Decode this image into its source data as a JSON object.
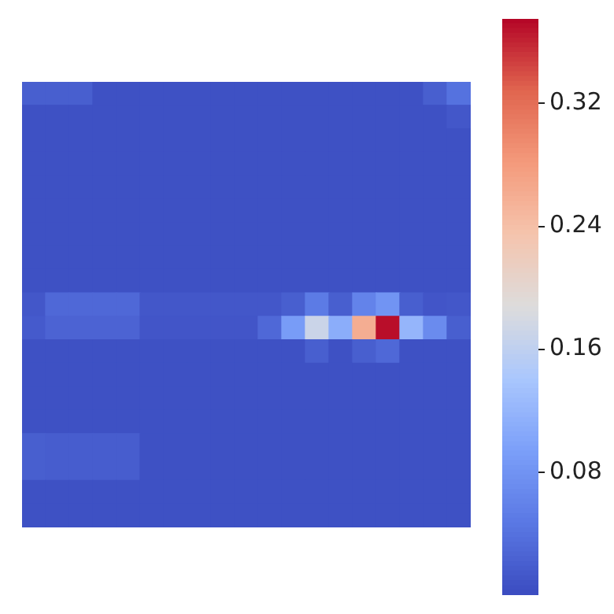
{
  "chart_data": {
    "type": "heatmap",
    "categories": [
      null,
      null,
      null,
      null,
      null,
      null,
      null,
      null,
      null,
      null,
      null,
      null,
      null,
      null,
      null,
      null,
      null,
      null,
      null
    ],
    "y_categories": [
      null,
      null,
      null,
      null,
      null,
      null,
      null,
      null,
      null,
      null,
      null,
      null,
      null,
      null,
      null,
      null,
      null,
      null,
      null
    ],
    "tick_labels": false,
    "clim": [
      0,
      0.375
    ],
    "cticks": [
      0.08,
      0.16,
      0.24,
      0.32
    ],
    "cells": [
      [
        0.02,
        0.02,
        0.02,
        0.005,
        0.005,
        0.005,
        0.005,
        0.005,
        0.005,
        0.005,
        0.005,
        0.005,
        0.005,
        0.005,
        0.005,
        0.005,
        0.005,
        0.02,
        0.04
      ],
      [
        0.005,
        0.005,
        0.005,
        0.005,
        0.005,
        0.005,
        0.005,
        0.005,
        0.005,
        0.005,
        0.005,
        0.005,
        0.005,
        0.005,
        0.005,
        0.005,
        0.005,
        0.005,
        0.012
      ],
      [
        0.005,
        0.005,
        0.005,
        0.005,
        0.005,
        0.005,
        0.005,
        0.005,
        0.005,
        0.005,
        0.005,
        0.005,
        0.005,
        0.005,
        0.005,
        0.005,
        0.005,
        0.005,
        0.005
      ],
      [
        0.005,
        0.005,
        0.005,
        0.005,
        0.005,
        0.005,
        0.005,
        0.005,
        0.005,
        0.005,
        0.005,
        0.005,
        0.005,
        0.005,
        0.005,
        0.005,
        0.005,
        0.005,
        0.005
      ],
      [
        0.005,
        0.005,
        0.005,
        0.005,
        0.005,
        0.005,
        0.005,
        0.005,
        0.005,
        0.005,
        0.005,
        0.005,
        0.005,
        0.005,
        0.005,
        0.005,
        0.005,
        0.005,
        0.005
      ],
      [
        0.005,
        0.005,
        0.005,
        0.005,
        0.005,
        0.005,
        0.005,
        0.005,
        0.005,
        0.005,
        0.005,
        0.005,
        0.005,
        0.005,
        0.005,
        0.005,
        0.005,
        0.005,
        0.005
      ],
      [
        0.005,
        0.005,
        0.005,
        0.005,
        0.005,
        0.005,
        0.005,
        0.005,
        0.005,
        0.005,
        0.005,
        0.005,
        0.005,
        0.005,
        0.005,
        0.005,
        0.005,
        0.005,
        0.005
      ],
      [
        0.005,
        0.005,
        0.005,
        0.005,
        0.005,
        0.005,
        0.005,
        0.005,
        0.005,
        0.005,
        0.005,
        0.005,
        0.005,
        0.005,
        0.005,
        0.005,
        0.005,
        0.005,
        0.005
      ],
      [
        0.005,
        0.005,
        0.005,
        0.005,
        0.005,
        0.005,
        0.005,
        0.005,
        0.005,
        0.005,
        0.005,
        0.005,
        0.005,
        0.005,
        0.005,
        0.005,
        0.005,
        0.005,
        0.005
      ],
      [
        0.012,
        0.03,
        0.03,
        0.03,
        0.03,
        0.012,
        0.012,
        0.012,
        0.012,
        0.012,
        0.012,
        0.02,
        0.05,
        0.02,
        0.06,
        0.08,
        0.02,
        0.01,
        0.012
      ],
      [
        0.015,
        0.025,
        0.025,
        0.025,
        0.025,
        0.01,
        0.01,
        0.01,
        0.01,
        0.01,
        0.03,
        0.09,
        0.17,
        0.11,
        0.26,
        0.37,
        0.12,
        0.07,
        0.02
      ],
      [
        0.005,
        0.005,
        0.005,
        0.005,
        0.005,
        0.005,
        0.005,
        0.005,
        0.005,
        0.005,
        0.005,
        0.005,
        0.02,
        0.005,
        0.02,
        0.03,
        0.005,
        0.005,
        0.005
      ],
      [
        0.005,
        0.005,
        0.005,
        0.005,
        0.005,
        0.005,
        0.005,
        0.005,
        0.005,
        0.005,
        0.005,
        0.005,
        0.005,
        0.005,
        0.005,
        0.005,
        0.005,
        0.005,
        0.005
      ],
      [
        0.005,
        0.005,
        0.005,
        0.005,
        0.005,
        0.005,
        0.005,
        0.005,
        0.005,
        0.005,
        0.005,
        0.005,
        0.005,
        0.005,
        0.005,
        0.005,
        0.005,
        0.005,
        0.005
      ],
      [
        0.005,
        0.005,
        0.005,
        0.005,
        0.005,
        0.005,
        0.005,
        0.005,
        0.005,
        0.005,
        0.005,
        0.005,
        0.005,
        0.005,
        0.005,
        0.005,
        0.005,
        0.005,
        0.005
      ],
      [
        0.02,
        0.018,
        0.018,
        0.018,
        0.018,
        0.005,
        0.005,
        0.005,
        0.005,
        0.005,
        0.005,
        0.005,
        0.005,
        0.005,
        0.005,
        0.005,
        0.005,
        0.005,
        0.005
      ],
      [
        0.02,
        0.018,
        0.018,
        0.018,
        0.018,
        0.005,
        0.005,
        0.005,
        0.005,
        0.005,
        0.005,
        0.005,
        0.005,
        0.005,
        0.005,
        0.005,
        0.005,
        0.005,
        0.005
      ],
      [
        0.005,
        0.005,
        0.005,
        0.005,
        0.005,
        0.005,
        0.005,
        0.005,
        0.005,
        0.005,
        0.005,
        0.005,
        0.005,
        0.005,
        0.005,
        0.005,
        0.005,
        0.005,
        0.005
      ],
      [
        0.005,
        0.005,
        0.005,
        0.005,
        0.005,
        0.005,
        0.005,
        0.005,
        0.005,
        0.005,
        0.005,
        0.005,
        0.005,
        0.005,
        0.005,
        0.005,
        0.005,
        0.005,
        0.005
      ]
    ]
  }
}
